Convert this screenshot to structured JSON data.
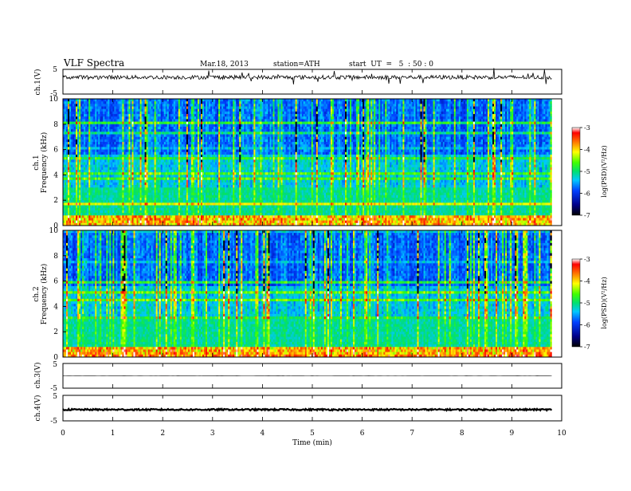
{
  "header": {
    "title": "VLF Spectra",
    "date": "Mar.18, 2013",
    "station": "station=ATH",
    "start": "start  UT  =   5  : 50 : 0"
  },
  "chart_data": [
    {
      "type": "line",
      "id": "ch1-waveform",
      "ylabel": "ch.1(V)",
      "ylim": [
        -5,
        5
      ],
      "yticks": [
        "5",
        "-5"
      ],
      "xlim": [
        0,
        10
      ],
      "data_extent_min": 9.8,
      "series": [
        {
          "description_values": {
            "baseline": 1.8,
            "noise_amplitude": 0.8
          }
        }
      ]
    },
    {
      "type": "heatmap",
      "id": "ch1-spectrogram",
      "ylabel": "ch.1\nFrequency (kHz)",
      "ylabel_lines": [
        "ch.1",
        "Frequency (kHz)"
      ],
      "yticks": [
        "0",
        "2",
        "4",
        "6",
        "8",
        "10"
      ],
      "ylim": [
        0,
        10
      ],
      "xlim": [
        0,
        10
      ],
      "data_extent_min": 9.8,
      "colorbar": {
        "label": "log(PSD)(V²/Hz)",
        "ticks": [
          "-3",
          "-4",
          "-5",
          "-6",
          "-7"
        ],
        "range": [
          -7,
          -3
        ]
      }
    },
    {
      "type": "heatmap",
      "id": "ch2-spectrogram",
      "ylabel_lines": [
        "ch.2",
        "Frequency (kHz)"
      ],
      "yticks": [
        "0",
        "2",
        "4",
        "6",
        "8",
        "10"
      ],
      "ylim": [
        0,
        10
      ],
      "xlim": [
        0,
        10
      ],
      "data_extent_min": 9.8,
      "colorbar": {
        "label": "log(PSD)(V²/Hz)",
        "ticks": [
          "-3",
          "-4",
          "-5",
          "-6",
          "-7"
        ],
        "range": [
          -7,
          -3
        ]
      }
    },
    {
      "type": "line",
      "id": "ch3-waveform",
      "ylabel": "ch.3(V)",
      "ylim": [
        -5,
        5
      ],
      "yticks": [
        "5",
        "-5"
      ],
      "xlim": [
        0,
        10
      ],
      "data_extent_min": 9.8,
      "series": [
        {
          "description_values": {
            "baseline": 0,
            "noise_amplitude": 0.05
          }
        }
      ]
    },
    {
      "type": "line",
      "id": "ch4-waveform",
      "ylabel": "ch.4(V)",
      "ylim": [
        -5,
        5
      ],
      "yticks": [
        "5",
        "-5"
      ],
      "xlim": [
        0,
        10
      ],
      "data_extent_min": 9.8,
      "series": [
        {
          "description_values": {
            "baseline": -0.6,
            "noise_amplitude": 0.3
          }
        }
      ]
    }
  ],
  "xaxis": {
    "label": "Time (min)",
    "ticks": [
      "0",
      "1",
      "2",
      "3",
      "4",
      "5",
      "6",
      "7",
      "8",
      "9",
      "10"
    ],
    "range": [
      0,
      10
    ]
  }
}
